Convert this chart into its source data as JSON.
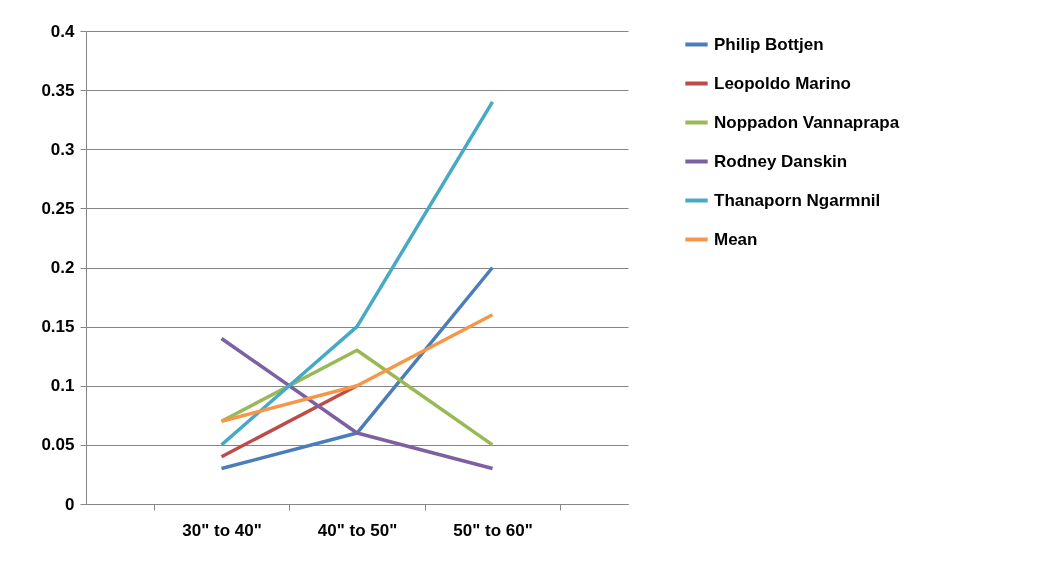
{
  "chart_data": {
    "type": "line",
    "categories": [
      "30\" to 40\"",
      "40\" to 50\"",
      "50\" to 60\""
    ],
    "series": [
      {
        "name": "Philip Bottjen",
        "color": "#4a7ebb",
        "values": [
          0.03,
          0.06,
          0.2
        ]
      },
      {
        "name": "Leopoldo Marino",
        "color": "#be4b48",
        "values": [
          0.04,
          0.1,
          null
        ]
      },
      {
        "name": "Noppadon Vannaprapa",
        "color": "#98b954",
        "values": [
          0.07,
          0.13,
          0.05
        ]
      },
      {
        "name": "Rodney Danskin",
        "color": "#7d60a0",
        "values": [
          0.14,
          0.06,
          0.03
        ]
      },
      {
        "name": "Thanaporn Ngarmnil",
        "color": "#46aac5",
        "values": [
          0.05,
          0.15,
          0.34
        ]
      },
      {
        "name": "Mean",
        "color": "#f79646",
        "values": [
          0.07,
          0.1,
          0.16
        ]
      }
    ],
    "ylim": [
      0,
      0.4
    ],
    "yticks": [
      0,
      0.05,
      0.1,
      0.15,
      0.2,
      0.25,
      0.3,
      0.35,
      0.4
    ],
    "grid": "y",
    "legend": "right",
    "marker": "none",
    "line_style": "solid"
  }
}
